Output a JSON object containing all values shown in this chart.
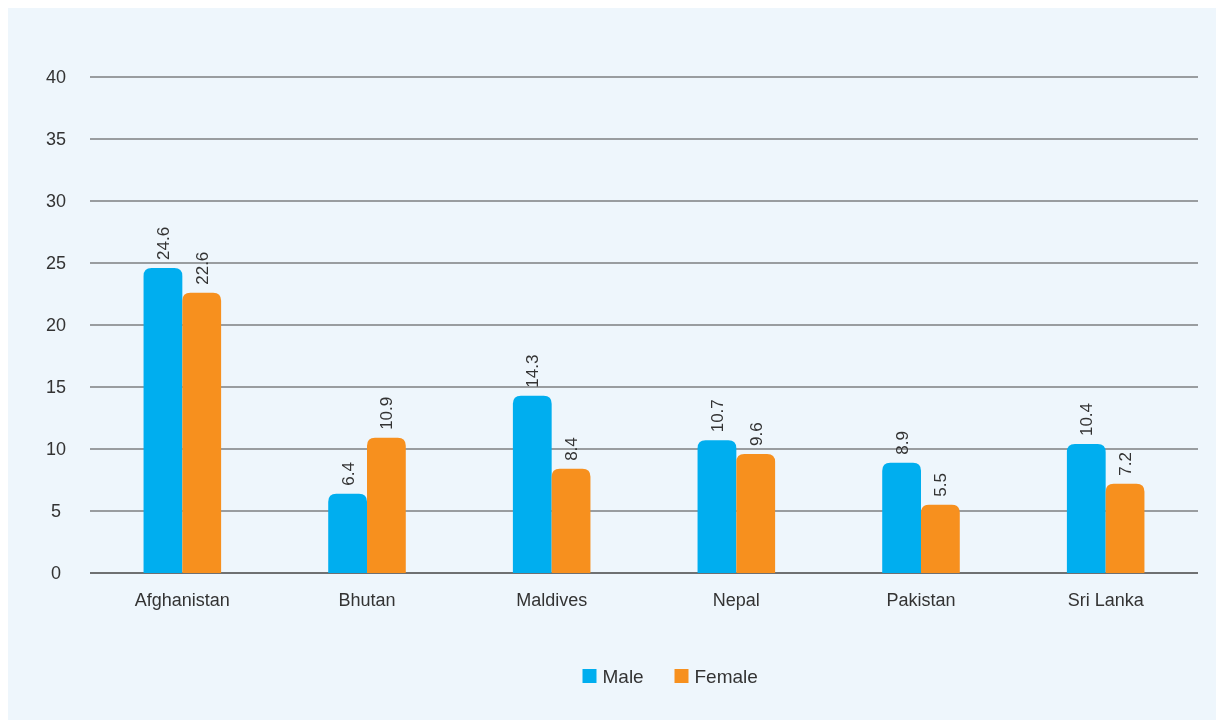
{
  "chart_data": {
    "type": "bar",
    "categories": [
      "Afghanistan",
      "Bhutan",
      "Maldives",
      "Nepal",
      "Pakistan",
      "Sri Lanka"
    ],
    "series": [
      {
        "name": "Male",
        "color": "#00aeef",
        "values": [
          24.6,
          6.4,
          14.3,
          10.7,
          8.9,
          10.4
        ]
      },
      {
        "name": "Female",
        "color": "#f7901e",
        "values": [
          22.6,
          10.9,
          8.4,
          9.6,
          5.5,
          7.2
        ]
      }
    ],
    "ylim": [
      0,
      40
    ],
    "yticks": [
      0,
      5,
      10,
      15,
      20,
      25,
      30,
      35,
      40
    ],
    "grid": "y",
    "legend": "bottom",
    "data_labels": true
  }
}
